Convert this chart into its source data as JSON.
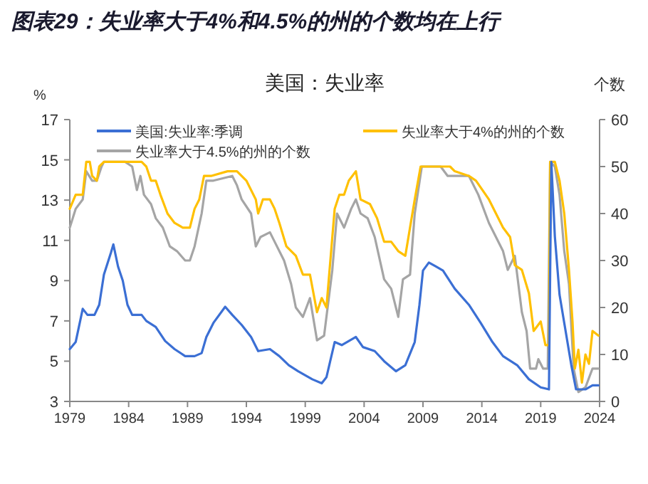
{
  "chart_data": {
    "type": "line",
    "title": "图表29：失业率大于4%和4.5%的州的个数均在上行",
    "subtitle": "美国：失业率",
    "ylabel": "%",
    "y2label": "个数",
    "xlim": [
      1979,
      2024
    ],
    "xticks": [
      1979,
      1984,
      1989,
      1994,
      1999,
      2004,
      2009,
      2014,
      2019,
      2024
    ],
    "ylim": [
      3,
      17
    ],
    "yticks": [
      3,
      5,
      7,
      9,
      11,
      13,
      15,
      17
    ],
    "y2lim": [
      0,
      60
    ],
    "y2ticks": [
      0,
      10,
      20,
      30,
      40,
      50,
      60
    ],
    "grid": false,
    "legend": "top",
    "marker": "none",
    "line_style": "solid",
    "series": [
      {
        "name": "美国:失业率:季调",
        "color": "#3b6fd4",
        "x": [
          1979.0,
          1979.5,
          1980.1,
          1980.5,
          1981.1,
          1981.5,
          1981.9,
          1982.5,
          1982.7,
          1983.1,
          1983.5,
          1983.9,
          1984.3,
          1985.1,
          1985.5,
          1986.3,
          1987.1,
          1987.9,
          1988.8,
          1989.6,
          1990.2,
          1990.6,
          1991.2,
          1992.2,
          1992.8,
          1993.6,
          1994.4,
          1995.0,
          1996.0,
          1996.8,
          1997.6,
          1998.4,
          1999.6,
          2000.4,
          2000.8,
          2001.5,
          2002.1,
          2003.3,
          2003.9,
          2004.9,
          2005.7,
          2006.7,
          2007.5,
          2008.3,
          2008.7,
          2009.0,
          2009.5,
          2010.1,
          2010.7,
          2011.7,
          2012.9,
          2013.9,
          2014.9,
          2015.8,
          2017.0,
          2018.0,
          2019.0,
          2019.7,
          2019.9,
          2020.2,
          2020.6,
          2021.0,
          2021.6,
          2022.0,
          2022.8,
          2023.4,
          2023.9
        ],
        "values": [
          5.6,
          5.95,
          7.6,
          7.3,
          7.3,
          7.8,
          9.3,
          10.4,
          10.8,
          9.7,
          9.0,
          7.8,
          7.3,
          7.3,
          7.0,
          6.7,
          6.0,
          5.6,
          5.25,
          5.25,
          5.4,
          6.2,
          6.9,
          7.7,
          7.3,
          6.8,
          6.2,
          5.5,
          5.6,
          5.25,
          4.8,
          4.5,
          4.1,
          3.9,
          4.2,
          5.95,
          5.8,
          6.2,
          5.7,
          5.5,
          5.0,
          4.5,
          4.8,
          5.95,
          7.8,
          9.5,
          9.9,
          9.7,
          9.5,
          8.6,
          7.8,
          6.9,
          5.95,
          5.25,
          4.8,
          4.1,
          3.7,
          3.6,
          14.9,
          11.2,
          8.3,
          6.9,
          4.8,
          3.6,
          3.6,
          3.8,
          3.8
        ]
      },
      {
        "name": "失业率大于4%的州的个数",
        "color": "#ffc000",
        "axis": "y2",
        "x": [
          1979.0,
          1979.5,
          1980.1,
          1980.4,
          1980.7,
          1980.9,
          1981.3,
          1981.5,
          1981.9,
          1985.1,
          1985.5,
          1985.9,
          1986.3,
          1986.7,
          1987.3,
          1987.9,
          1988.6,
          1989.2,
          1989.6,
          1990.0,
          1990.4,
          1991.0,
          1992.4,
          1993.2,
          1994.0,
          1994.8,
          1995.0,
          1995.4,
          1996.0,
          1996.4,
          1996.8,
          1997.4,
          1998.2,
          1998.8,
          1999.4,
          2000.0,
          2000.4,
          2000.8,
          2001.5,
          2001.9,
          2002.3,
          2002.7,
          2003.3,
          2003.7,
          2004.5,
          2005.1,
          2005.7,
          2006.3,
          2006.9,
          2007.5,
          2007.9,
          2008.3,
          2008.8,
          2011.3,
          2011.7,
          2012.9,
          2013.5,
          2014.6,
          2015.2,
          2015.8,
          2016.4,
          2016.8,
          2017.4,
          2018.0,
          2018.4,
          2019.0,
          2019.4,
          2019.7,
          2019.8,
          2020.2,
          2020.6,
          2021.0,
          2021.4,
          2021.7,
          2021.9,
          2022.2,
          2022.5,
          2022.8,
          2023.1,
          2023.4,
          2023.9
        ],
        "values": [
          41,
          44,
          44,
          51,
          51,
          48,
          47,
          50,
          51,
          51,
          50,
          47,
          47,
          44,
          40,
          38,
          37,
          37,
          41,
          43,
          48,
          48,
          49,
          49,
          47,
          43,
          40,
          43,
          43,
          41,
          38,
          33,
          31,
          27,
          27,
          19,
          22,
          20,
          41,
          44,
          44,
          47,
          49,
          43,
          42,
          39,
          34,
          34,
          32,
          31,
          37,
          43,
          50,
          50,
          49,
          48,
          47,
          43,
          40,
          37,
          35,
          29,
          28,
          23,
          15,
          17,
          12,
          12,
          51,
          51,
          47,
          40,
          28,
          17,
          7,
          11,
          4,
          10,
          8,
          15,
          14
        ]
      },
      {
        "name": "失业率大于4.5%的州的个数",
        "color": "#a5a5a5",
        "axis": "y2",
        "x": [
          1979.0,
          1979.5,
          1980.1,
          1980.4,
          1980.9,
          1981.3,
          1981.7,
          1981.9,
          1983.7,
          1984.3,
          1984.7,
          1985.0,
          1985.3,
          1985.9,
          1986.3,
          1986.9,
          1987.5,
          1988.1,
          1988.8,
          1989.2,
          1989.6,
          1990.2,
          1990.6,
          1991.2,
          1992.8,
          1993.2,
          1993.6,
          1994.4,
          1994.8,
          1995.2,
          1996.0,
          1996.4,
          1997.2,
          1997.8,
          1998.2,
          1998.8,
          1999.4,
          2000.0,
          2000.6,
          2001.3,
          2001.7,
          2002.3,
          2002.9,
          2003.3,
          2003.7,
          2004.3,
          2004.9,
          2005.7,
          2006.3,
          2006.9,
          2007.3,
          2007.9,
          2008.3,
          2008.9,
          2010.5,
          2011.1,
          2012.9,
          2013.7,
          2014.6,
          2015.2,
          2015.8,
          2016.2,
          2016.8,
          2017.4,
          2017.8,
          2018.1,
          2018.6,
          2018.8,
          2019.2,
          2019.6,
          2019.8,
          2020.2,
          2020.6,
          2021.0,
          2021.4,
          2021.8,
          2022.2,
          2022.8,
          2023.4,
          2023.9
        ],
        "values": [
          37,
          41,
          43,
          49,
          47,
          47,
          50,
          51,
          51,
          50,
          45,
          48,
          44,
          42,
          39,
          37,
          33,
          32,
          30,
          30,
          33,
          40,
          47,
          47,
          48,
          46,
          43,
          40,
          33,
          35,
          36,
          34,
          30,
          25,
          20,
          18,
          22,
          13,
          14,
          28,
          40,
          37,
          41,
          43,
          40,
          39,
          35,
          26,
          24,
          18,
          26,
          27,
          40,
          50,
          50,
          48,
          48,
          44,
          38,
          35,
          32,
          28,
          31,
          19,
          15,
          7,
          7,
          9,
          7,
          7,
          51,
          50,
          44,
          32,
          25,
          7,
          2,
          3,
          7,
          7
        ]
      }
    ]
  }
}
